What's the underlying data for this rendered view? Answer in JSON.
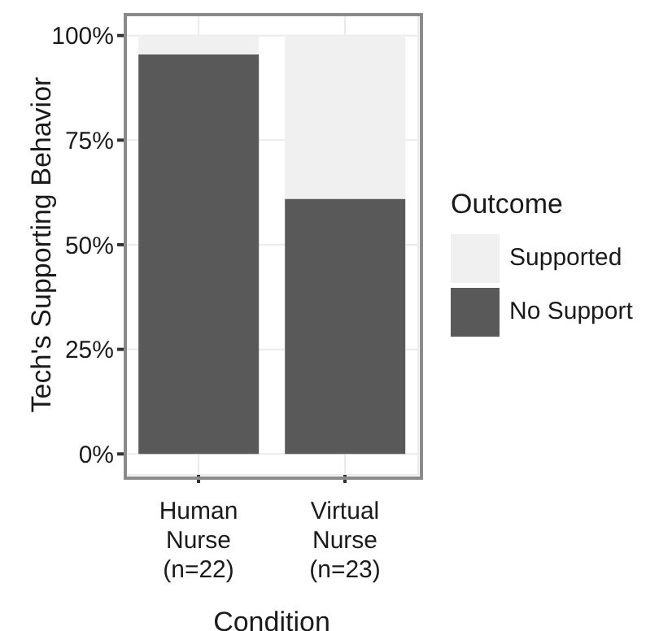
{
  "chart_data": {
    "type": "bar",
    "stacked": true,
    "xlabel": "Condition",
    "ylabel": "Tech's Supporting Behavior",
    "legend_title": "Outcome",
    "categories": [
      "Human Nurse (n=22)",
      "Virtual Nurse (n=23)"
    ],
    "series": [
      {
        "name": "No Support",
        "color": "#595959",
        "values": [
          95.5,
          61
        ]
      },
      {
        "name": "Supported",
        "color": "#f0f0f0",
        "values": [
          4.5,
          39
        ]
      }
    ],
    "ylim": [
      -5,
      105
    ],
    "yticks": [
      {
        "value": 0,
        "label": "0%"
      },
      {
        "value": 25,
        "label": "25%"
      },
      {
        "value": 50,
        "label": "50%"
      },
      {
        "value": 75,
        "label": "75%"
      },
      {
        "value": 100,
        "label": "100%"
      }
    ],
    "grid": true,
    "legend": "right"
  }
}
